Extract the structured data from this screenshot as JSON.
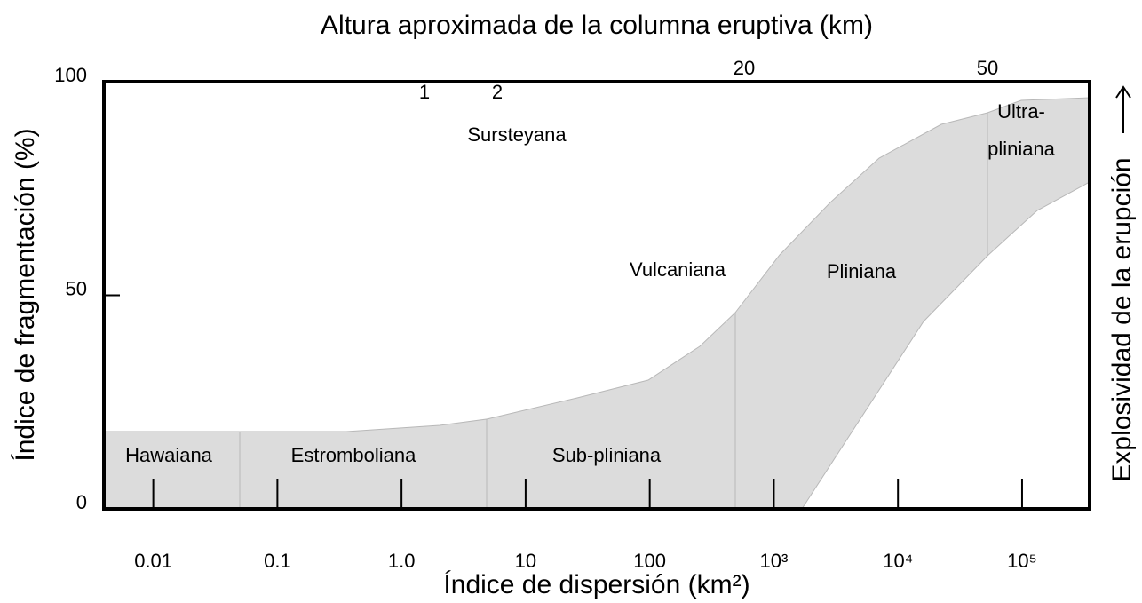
{
  "chart_data": {
    "type": "classification",
    "x2_label": "Altura aproximada de la columna eruptiva (km)",
    "xlabel": "Índice de dispersión (km²)",
    "ylabel": "Índice de fragmentación (%)",
    "y2label": "Explosividad de la erupción",
    "x_scale": "log",
    "xlim": [
      0.004,
      350000
    ],
    "xticks": [
      0.01,
      0.1,
      {
        "value": 1,
        "label": "1.0"
      },
      10,
      100,
      {
        "value": 1000,
        "label": "10³"
      },
      {
        "value": 10000,
        "label": "10⁴"
      },
      {
        "value": 100000,
        "label": "10⁵"
      }
    ],
    "ylim": [
      0,
      100
    ],
    "yticks": [
      0,
      50,
      100
    ],
    "x2ticks": [
      1,
      2,
      20,
      50
    ],
    "labels": [
      "Hawaiana",
      "Estromboliana",
      "Sub-pliniana",
      "Vulcaniana",
      "Pliniana",
      "Sursteyana",
      "Ultra-",
      "pliniana"
    ]
  }
}
